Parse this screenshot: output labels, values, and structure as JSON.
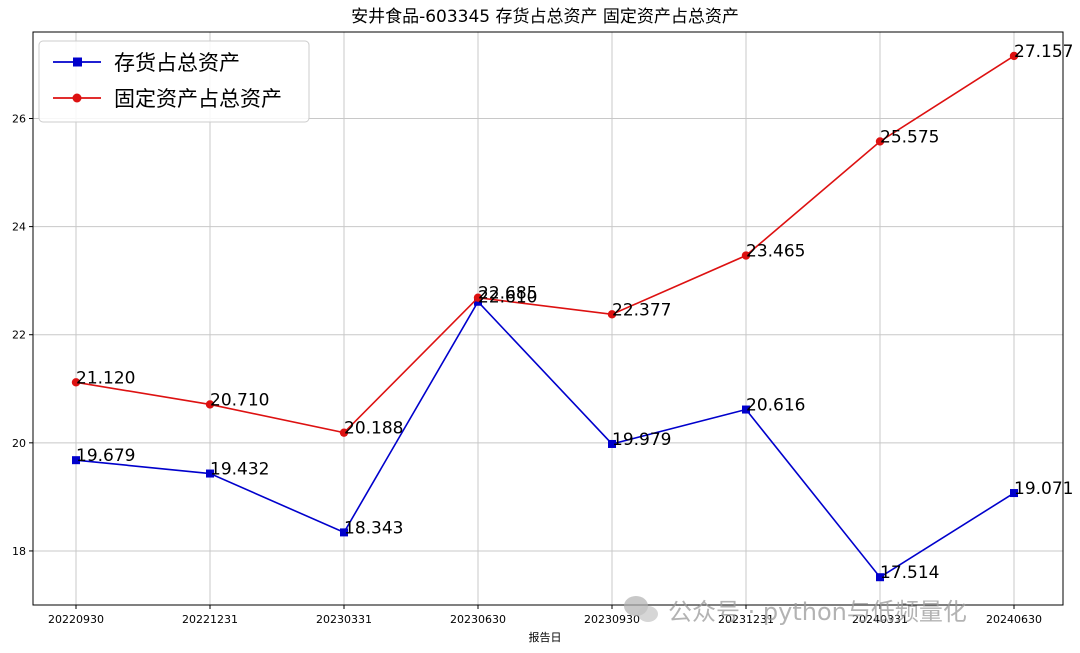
{
  "chart_data": {
    "type": "line",
    "title": "安井食品-603345 存货占总资产 固定资产占总资产",
    "xlabel": "报告日",
    "ylabel": "",
    "categories": [
      "20220930",
      "20221231",
      "20230331",
      "20230630",
      "20230930",
      "20231231",
      "20240331",
      "20240630"
    ],
    "ylim": [
      17.0,
      27.6
    ],
    "yticks": [
      18,
      20,
      22,
      24,
      26
    ],
    "grid": true,
    "legend_position": "top-left",
    "series": [
      {
        "name": "存货占总资产",
        "color": "#0000cc",
        "marker": "square",
        "values": [
          19.679,
          19.432,
          18.343,
          22.61,
          19.979,
          20.616,
          17.514,
          19.071
        ],
        "labels": [
          "19.679",
          "19.432",
          "18.343",
          "22.610",
          "19.979",
          "20.616",
          "17.514",
          "19.071"
        ]
      },
      {
        "name": "固定资产占总资产",
        "color": "#dd1111",
        "marker": "circle",
        "values": [
          21.12,
          20.71,
          20.188,
          22.685,
          22.377,
          23.465,
          25.575,
          27.157
        ],
        "labels": [
          "21.120",
          "20.710",
          "20.188",
          "22.685",
          "22.377",
          "23.465",
          "25.575",
          "27.157"
        ]
      }
    ]
  },
  "watermark": {
    "icon": "wechat-icon",
    "text": "公众号 · python与低频量化"
  }
}
